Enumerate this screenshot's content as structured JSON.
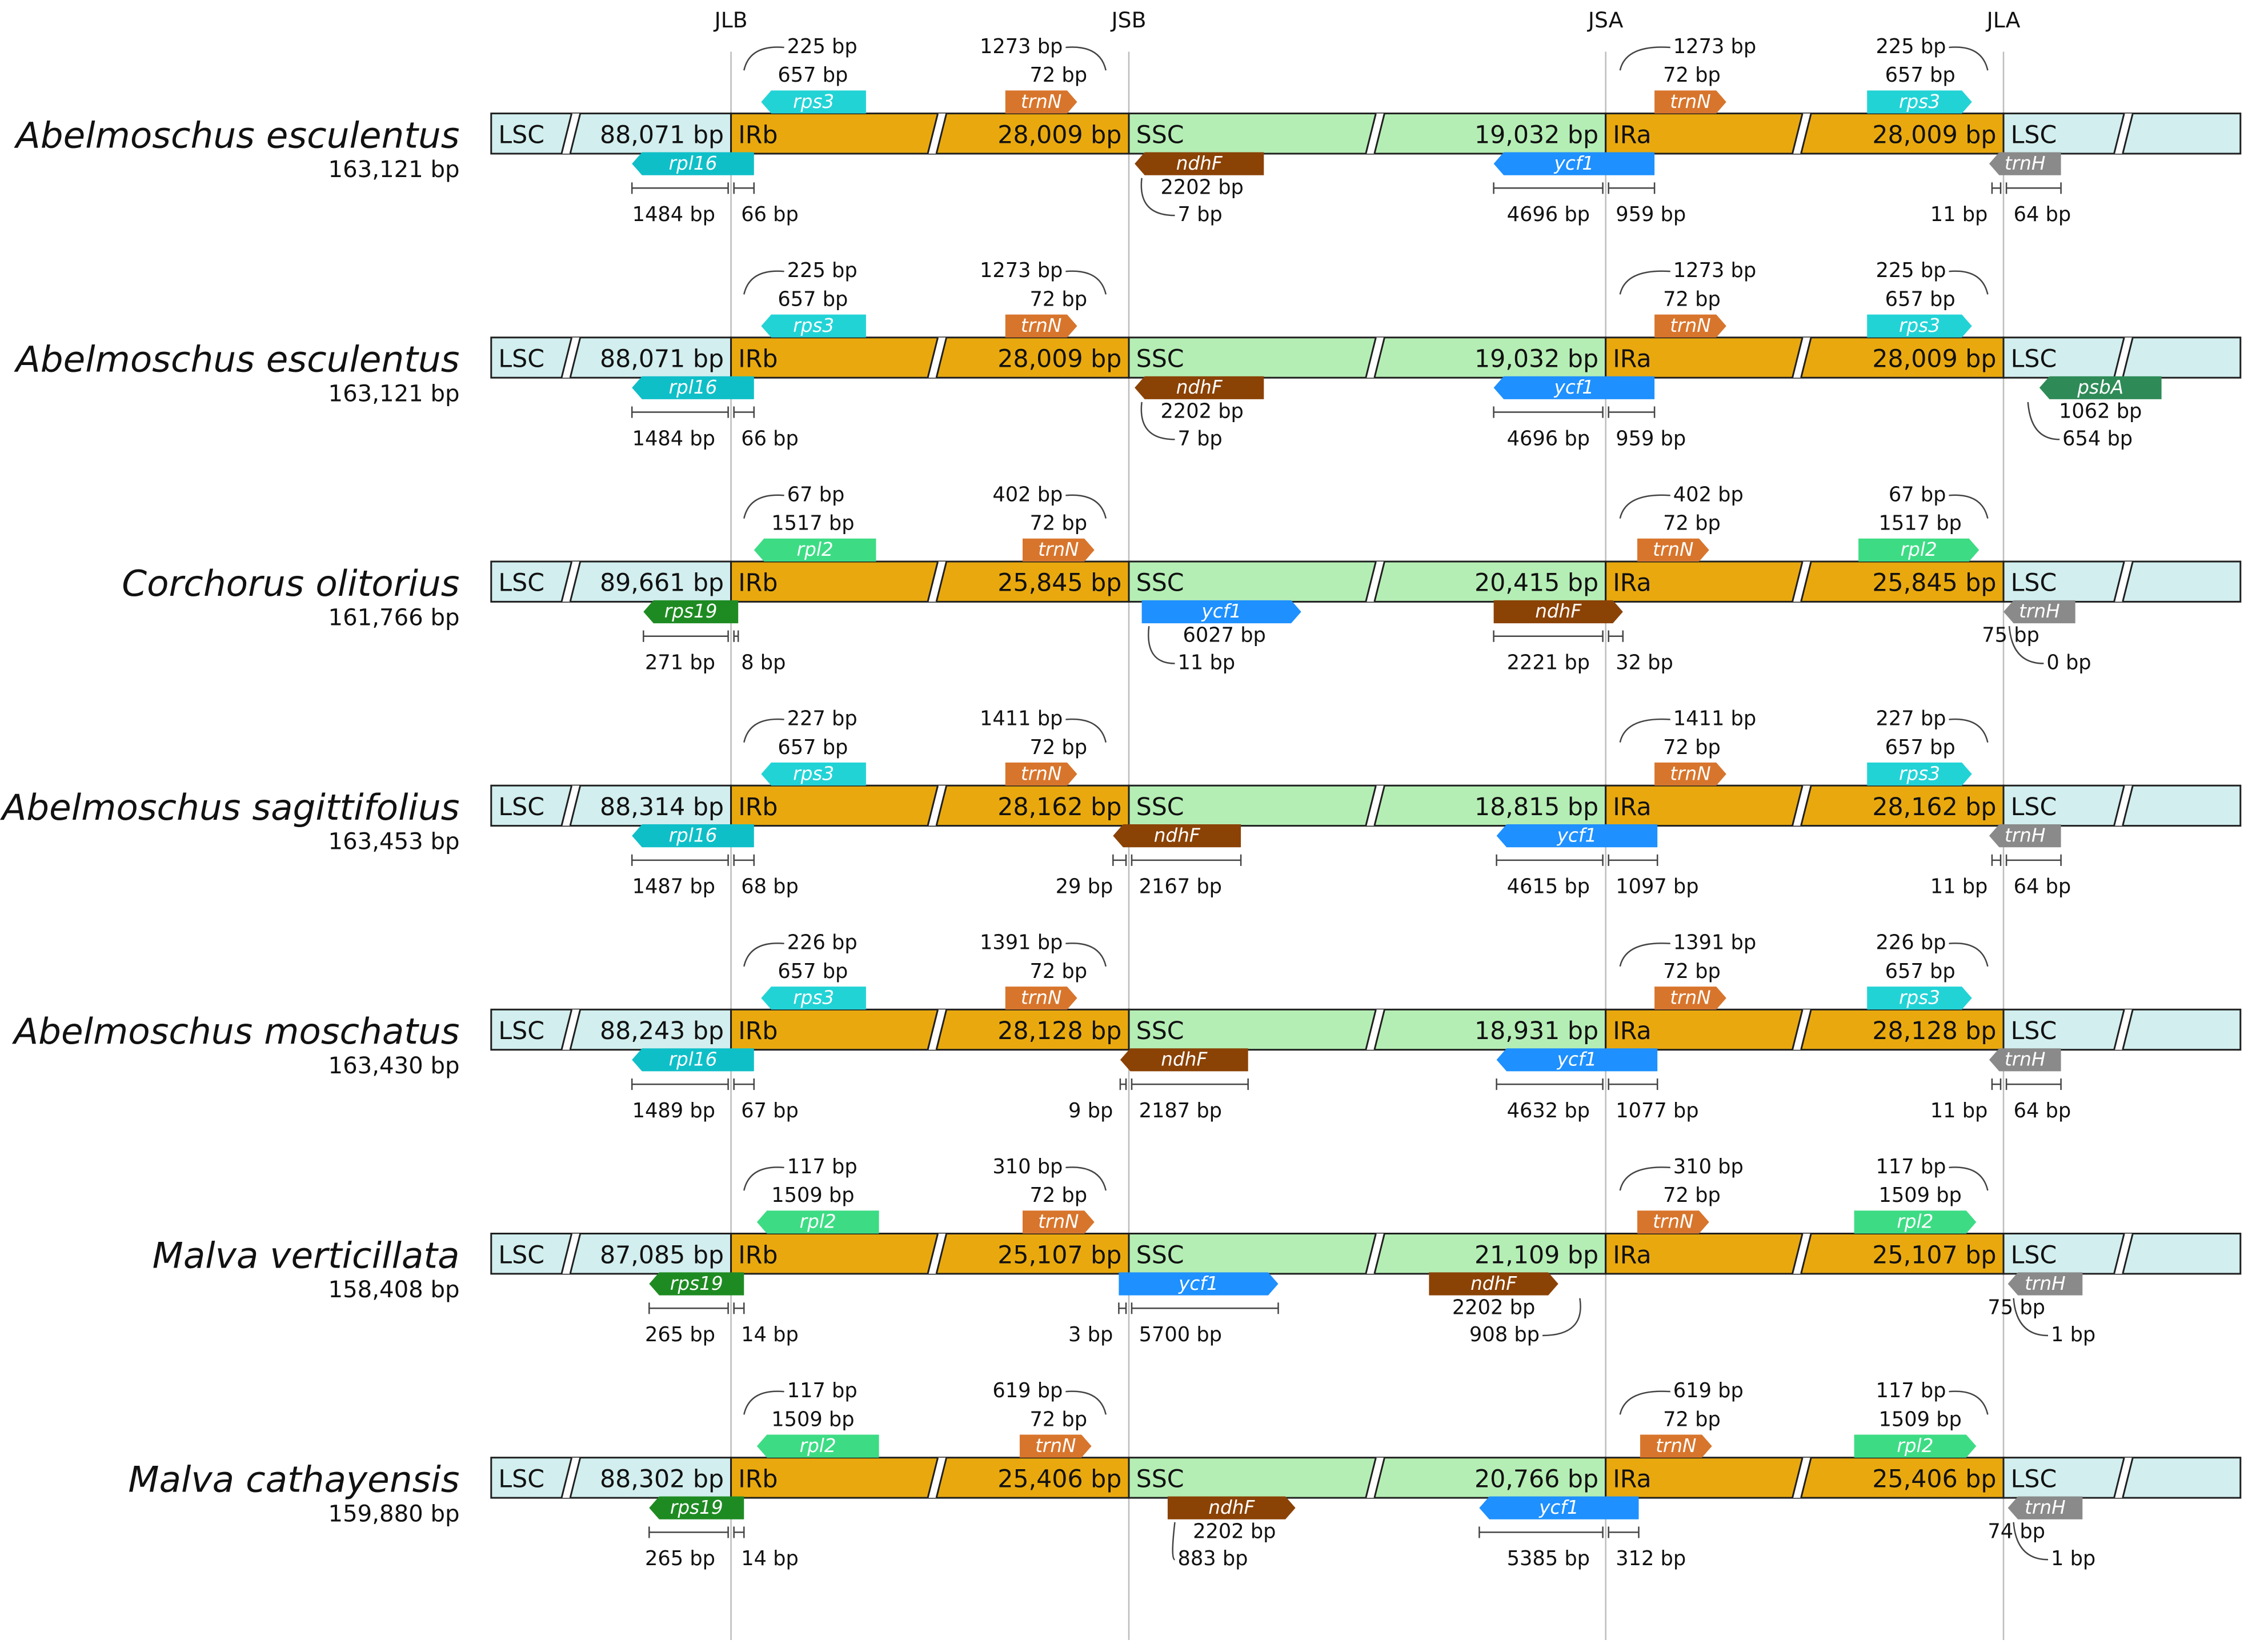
{
  "figure": {
    "junctions": [
      "JLB",
      "JSB",
      "JSA",
      "JLA"
    ],
    "colors": {
      "lsc": "#d2eeee",
      "ir": "#e9a90e",
      "ssc": "#b5eeb5",
      "junction_line": "#bdbdbd",
      "outline": "#202020",
      "text": "#111111",
      "gene_text": "#ffffff",
      "tick": "#444444"
    },
    "rows": [
      {
        "name": "Abelmoschus esculentus",
        "total": "163,121 bp",
        "regions": {
          "LSC": "LSC",
          "IRb": "IRb",
          "SSC": "SSC",
          "IRa": "IRa",
          "LSC_end": "LSC"
        },
        "lengths": {
          "lsc": "88,071 bp",
          "ir": "28,009 bp",
          "ssc": "19,032 bp"
        },
        "genes": [
          {
            "name": "rps3",
            "color": "#22d3d6",
            "dir": "left",
            "pos": "top"
          },
          {
            "name": "trnN",
            "color": "#d8752c",
            "dir": "right",
            "pos": "top"
          },
          {
            "name": "trnN",
            "color": "#d8752c",
            "dir": "right",
            "pos": "top"
          },
          {
            "name": "rps3",
            "color": "#22d3d6",
            "dir": "right",
            "pos": "top"
          },
          {
            "name": "rpl16",
            "color": "#0fbfc8",
            "dir": "left",
            "pos": "bottom"
          },
          {
            "name": "ndhF",
            "color": "#8b4205",
            "dir": "left",
            "pos": "bottom"
          },
          {
            "name": "ycf1",
            "color": "#1e90ff",
            "dir": "left",
            "pos": "bottom"
          },
          {
            "name": "trnH",
            "color": "#8a8a8a",
            "dir": "left",
            "pos": "bottom"
          }
        ],
        "labels": [
          "225 bp",
          "657 bp",
          "1273 bp",
          "72 bp",
          "1273 bp",
          "72 bp",
          "225 bp",
          "657 bp",
          "1484 bp",
          "66 bp",
          "2202 bp",
          "7 bp",
          "4696 bp",
          "959 bp",
          "11 bp",
          "64 bp"
        ]
      },
      {
        "name": "Abelmoschus esculentus",
        "total": "163,121 bp",
        "regions": {
          "LSC": "LSC",
          "IRb": "IRb",
          "SSC": "SSC",
          "IRa": "IRa",
          "LSC_end": "LSC"
        },
        "lengths": {
          "lsc": "88,071 bp",
          "ir": "28,009 bp",
          "ssc": "19,032 bp"
        },
        "genes": [
          {
            "name": "rps3",
            "color": "#22d3d6",
            "dir": "left",
            "pos": "top"
          },
          {
            "name": "trnN",
            "color": "#d8752c",
            "dir": "right",
            "pos": "top"
          },
          {
            "name": "trnN",
            "color": "#d8752c",
            "dir": "right",
            "pos": "top"
          },
          {
            "name": "rps3",
            "color": "#22d3d6",
            "dir": "right",
            "pos": "top"
          },
          {
            "name": "rpl16",
            "color": "#0fbfc8",
            "dir": "left",
            "pos": "bottom"
          },
          {
            "name": "ndhF",
            "color": "#8b4205",
            "dir": "left",
            "pos": "bottom"
          },
          {
            "name": "ycf1",
            "color": "#1e90ff",
            "dir": "left",
            "pos": "bottom"
          },
          {
            "name": "psbA",
            "color": "#2e8b57",
            "dir": "left",
            "pos": "bottom"
          }
        ],
        "labels": [
          "225 bp",
          "657 bp",
          "1273 bp",
          "72 bp",
          "1273 bp",
          "72 bp",
          "225 bp",
          "657 bp",
          "1484 bp",
          "66 bp",
          "2202 bp",
          "7 bp",
          "4696 bp",
          "959 bp",
          "1062 bp",
          "654 bp"
        ]
      },
      {
        "name": "Corchorus olitorius",
        "total": "161,766 bp",
        "regions": {
          "LSC": "LSC",
          "IRb": "IRb",
          "SSC": "SSC",
          "IRa": "IRa",
          "LSC_end": "LSC"
        },
        "lengths": {
          "lsc": "89,661 bp",
          "ir": "25,845 bp",
          "ssc": "20,415 bp"
        },
        "genes": [
          {
            "name": "rpl2",
            "color": "#3ddc84",
            "dir": "left",
            "pos": "top"
          },
          {
            "name": "trnN",
            "color": "#d8752c",
            "dir": "right",
            "pos": "top"
          },
          {
            "name": "trnN",
            "color": "#d8752c",
            "dir": "right",
            "pos": "top"
          },
          {
            "name": "rpl2",
            "color": "#3ddc84",
            "dir": "right",
            "pos": "top"
          },
          {
            "name": "rps19",
            "color": "#1e8b22",
            "dir": "left",
            "pos": "bottom"
          },
          {
            "name": "ycf1",
            "color": "#1e90ff",
            "dir": "right",
            "pos": "bottom"
          },
          {
            "name": "ndhF",
            "color": "#8b4205",
            "dir": "right",
            "pos": "bottom"
          },
          {
            "name": "trnH",
            "color": "#8a8a8a",
            "dir": "left",
            "pos": "bottom"
          }
        ],
        "labels": [
          "67 bp",
          "1517 bp",
          "402 bp",
          "72 bp",
          "402 bp",
          "72 bp",
          "67 bp",
          "1517 bp",
          "271 bp",
          "8 bp",
          "6027 bp",
          "11 bp",
          "2221 bp",
          "32 bp",
          "75 bp",
          "0 bp"
        ]
      },
      {
        "name": "Abelmoschus sagittifolius",
        "total": "163,453 bp",
        "regions": {
          "LSC": "LSC",
          "IRb": "IRb",
          "SSC": "SSC",
          "IRa": "IRa",
          "LSC_end": "LSC"
        },
        "lengths": {
          "lsc": "88,314 bp",
          "ir": "28,162 bp",
          "ssc": "18,815 bp"
        },
        "genes": [
          {
            "name": "rps3",
            "color": "#22d3d6",
            "dir": "left",
            "pos": "top"
          },
          {
            "name": "trnN",
            "color": "#d8752c",
            "dir": "right",
            "pos": "top"
          },
          {
            "name": "trnN",
            "color": "#d8752c",
            "dir": "right",
            "pos": "top"
          },
          {
            "name": "rps3",
            "color": "#22d3d6",
            "dir": "right",
            "pos": "top"
          },
          {
            "name": "rpl16",
            "color": "#0fbfc8",
            "dir": "left",
            "pos": "bottom"
          },
          {
            "name": "ndhF",
            "color": "#8b4205",
            "dir": "left",
            "pos": "bottom"
          },
          {
            "name": "ycf1",
            "color": "#1e90ff",
            "dir": "left",
            "pos": "bottom"
          },
          {
            "name": "trnH",
            "color": "#8a8a8a",
            "dir": "left",
            "pos": "bottom"
          }
        ],
        "labels": [
          "227 bp",
          "657 bp",
          "1411 bp",
          "72 bp",
          "1411 bp",
          "72 bp",
          "227 bp",
          "657 bp",
          "1487 bp",
          "68 bp",
          "29 bp",
          "2167 bp",
          "4615 bp",
          "1097 bp",
          "11 bp",
          "64 bp"
        ]
      },
      {
        "name": "Abelmoschus moschatus",
        "total": "163,430 bp",
        "regions": {
          "LSC": "LSC",
          "IRb": "IRb",
          "SSC": "SSC",
          "IRa": "IRa",
          "LSC_end": "LSC"
        },
        "lengths": {
          "lsc": "88,243 bp",
          "ir": "28,128 bp",
          "ssc": "18,931 bp"
        },
        "genes": [
          {
            "name": "rps3",
            "color": "#22d3d6",
            "dir": "left",
            "pos": "top"
          },
          {
            "name": "trnN",
            "color": "#d8752c",
            "dir": "right",
            "pos": "top"
          },
          {
            "name": "trnN",
            "color": "#d8752c",
            "dir": "right",
            "pos": "top"
          },
          {
            "name": "rps3",
            "color": "#22d3d6",
            "dir": "right",
            "pos": "top"
          },
          {
            "name": "rpl16",
            "color": "#0fbfc8",
            "dir": "left",
            "pos": "bottom"
          },
          {
            "name": "ndhF",
            "color": "#8b4205",
            "dir": "left",
            "pos": "bottom"
          },
          {
            "name": "ycf1",
            "color": "#1e90ff",
            "dir": "left",
            "pos": "bottom"
          },
          {
            "name": "trnH",
            "color": "#8a8a8a",
            "dir": "left",
            "pos": "bottom"
          }
        ],
        "labels": [
          "226 bp",
          "657 bp",
          "1391 bp",
          "72 bp",
          "1391 bp",
          "72 bp",
          "226 bp",
          "657 bp",
          "1489 bp",
          "67 bp",
          "9 bp",
          "2187 bp",
          "4632 bp",
          "1077 bp",
          "11 bp",
          "64 bp"
        ]
      },
      {
        "name": "Malva verticillata",
        "total": "158,408 bp",
        "regions": {
          "LSC": "LSC",
          "IRb": "IRb",
          "SSC": "SSC",
          "IRa": "IRa",
          "LSC_end": "LSC"
        },
        "lengths": {
          "lsc": "87,085 bp",
          "ir": "25,107 bp",
          "ssc": "21,109 bp"
        },
        "genes": [
          {
            "name": "rpl2",
            "color": "#3ddc84",
            "dir": "left",
            "pos": "top"
          },
          {
            "name": "trnN",
            "color": "#d8752c",
            "dir": "right",
            "pos": "top"
          },
          {
            "name": "trnN",
            "color": "#d8752c",
            "dir": "right",
            "pos": "top"
          },
          {
            "name": "rpl2",
            "color": "#3ddc84",
            "dir": "right",
            "pos": "top"
          },
          {
            "name": "rps19",
            "color": "#1e8b22",
            "dir": "left",
            "pos": "bottom"
          },
          {
            "name": "ycf1",
            "color": "#1e90ff",
            "dir": "right",
            "pos": "bottom"
          },
          {
            "name": "ndhF",
            "color": "#8b4205",
            "dir": "right",
            "pos": "bottom"
          },
          {
            "name": "trnH",
            "color": "#8a8a8a",
            "dir": "left",
            "pos": "bottom"
          }
        ],
        "labels": [
          "117 bp",
          "1509 bp",
          "310 bp",
          "72 bp",
          "310 bp",
          "72 bp",
          "117 bp",
          "1509 bp",
          "265 bp",
          "14 bp",
          "3 bp",
          "5700 bp",
          "2202 bp",
          "908 bp",
          "75 bp",
          "1 bp"
        ]
      },
      {
        "name": "Malva cathayensis",
        "total": "159,880 bp",
        "regions": {
          "LSC": "LSC",
          "IRb": "IRb",
          "SSC": "SSC",
          "IRa": "IRa",
          "LSC_end": "LSC"
        },
        "lengths": {
          "lsc": "88,302 bp",
          "ir": "25,406 bp",
          "ssc": "20,766 bp"
        },
        "genes": [
          {
            "name": "rpl2",
            "color": "#3ddc84",
            "dir": "left",
            "pos": "top"
          },
          {
            "name": "trnN",
            "color": "#d8752c",
            "dir": "right",
            "pos": "top"
          },
          {
            "name": "trnN",
            "color": "#d8752c",
            "dir": "right",
            "pos": "top"
          },
          {
            "name": "rpl2",
            "color": "#3ddc84",
            "dir": "right",
            "pos": "top"
          },
          {
            "name": "rps19",
            "color": "#1e8b22",
            "dir": "left",
            "pos": "bottom"
          },
          {
            "name": "ndhF",
            "color": "#8b4205",
            "dir": "right",
            "pos": "bottom"
          },
          {
            "name": "ycf1",
            "color": "#1e90ff",
            "dir": "left",
            "pos": "bottom"
          },
          {
            "name": "trnH",
            "color": "#8a8a8a",
            "dir": "left",
            "pos": "bottom"
          }
        ],
        "labels": [
          "117 bp",
          "1509 bp",
          "619 bp",
          "72 bp",
          "619 bp",
          "72 bp",
          "117 bp",
          "1509 bp",
          "265 bp",
          "14 bp",
          "2202 bp",
          "883 bp",
          "5385 bp",
          "312 bp",
          "74 bp",
          "1 bp"
        ]
      }
    ]
  }
}
